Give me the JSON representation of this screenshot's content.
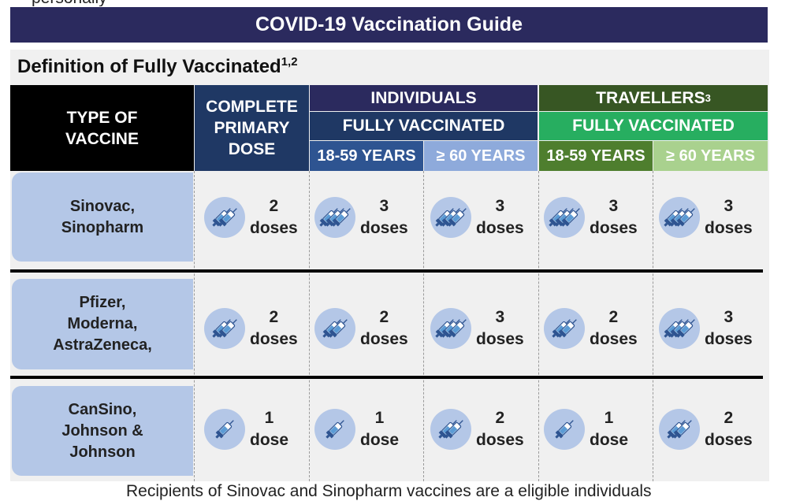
{
  "top_text": "    personally",
  "title": "COVID-19 Vaccination Guide",
  "subtitle": "Definition of Fully Vaccinated",
  "subtitle_sup": "1,2",
  "headers": {
    "type_line1": "TYPE OF",
    "type_line2": "VACCINE",
    "primary_line1": "COMPLETE",
    "primary_line2": "PRIMARY",
    "primary_line3": "DOSE",
    "individuals": "INDIVIDUALS",
    "travellers": "TRAVELLERS",
    "travellers_sup": "3",
    "fully_vaccinated": "FULLY VACCINATED",
    "age_18_59": "18-59 YEARS",
    "age_60": "≥ 60 YEARS"
  },
  "rows": [
    {
      "vaccine_lines": [
        "Sinovac,",
        "Sinopharm"
      ],
      "cells": [
        {
          "num": "2",
          "unit": "doses",
          "syringes": 2
        },
        {
          "num": "3",
          "unit": "doses",
          "syringes": 3
        },
        {
          "num": "3",
          "unit": "doses",
          "syringes": 3
        },
        {
          "num": "3",
          "unit": "doses",
          "syringes": 3
        },
        {
          "num": "3",
          "unit": "doses",
          "syringes": 3
        }
      ]
    },
    {
      "vaccine_lines": [
        "Pfizer,",
        "Moderna,",
        "AstraZeneca,"
      ],
      "cells": [
        {
          "num": "2",
          "unit": "doses",
          "syringes": 2
        },
        {
          "num": "2",
          "unit": "doses",
          "syringes": 2
        },
        {
          "num": "3",
          "unit": "doses",
          "syringes": 3
        },
        {
          "num": "2",
          "unit": "doses",
          "syringes": 2
        },
        {
          "num": "3",
          "unit": "doses",
          "syringes": 3
        }
      ]
    },
    {
      "vaccine_lines": [
        "CanSino,",
        "Johnson &",
        "Johnson"
      ],
      "cells": [
        {
          "num": "1",
          "unit": "dose",
          "syringes": 1
        },
        {
          "num": "1",
          "unit": "dose",
          "syringes": 1
        },
        {
          "num": "2",
          "unit": "doses",
          "syringes": 2
        },
        {
          "num": "1",
          "unit": "dose",
          "syringes": 1
        },
        {
          "num": "2",
          "unit": "doses",
          "syringes": 2
        }
      ]
    }
  ],
  "footer": "Recipients of Sinovac and Sinopharm vaccines are a eligible individuals",
  "colors": {
    "title_bg": "#2b2a5e",
    "individuals": "#2b2a5e",
    "travellers": "#375623",
    "travellers_fv": "#27ae60",
    "vaccine_cell": "#b4c7e7"
  }
}
